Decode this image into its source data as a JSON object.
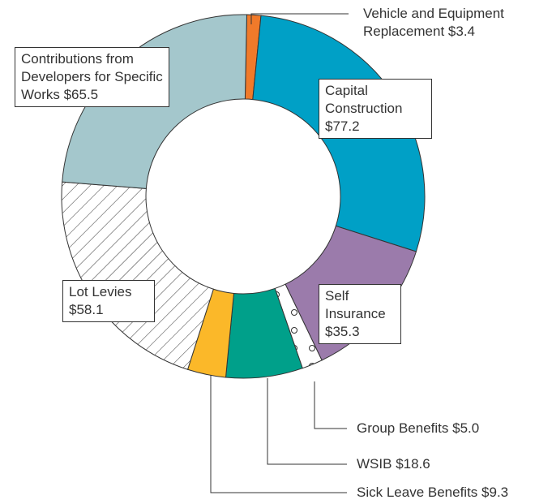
{
  "chart_data": {
    "type": "donut",
    "categories": [
      "Vehicle and Equipment Replacement",
      "Capital Construction",
      "Self Insurance",
      "Group Benefits",
      "WSIB",
      "Sick Leave Benefits",
      "Lot Levies",
      "Contributions from Developers for Specific Works"
    ],
    "values": [
      3.4,
      77.2,
      35.3,
      5.0,
      18.6,
      9.3,
      58.1,
      65.5
    ],
    "value_labels": [
      "$3.4",
      "$77.2",
      "$35.3",
      "$5.0",
      "$18.6",
      "$9.3",
      "$58.1",
      "$65.5"
    ],
    "colors": [
      "#f07a2a",
      "#00a0c6",
      "#9b7bab",
      "#ffffff",
      "#00a08a",
      "#fbb829",
      "#ffffff",
      "#a4c7cc"
    ],
    "patterns": [
      null,
      null,
      null,
      "dots",
      null,
      null,
      "hatch",
      null
    ]
  }
}
